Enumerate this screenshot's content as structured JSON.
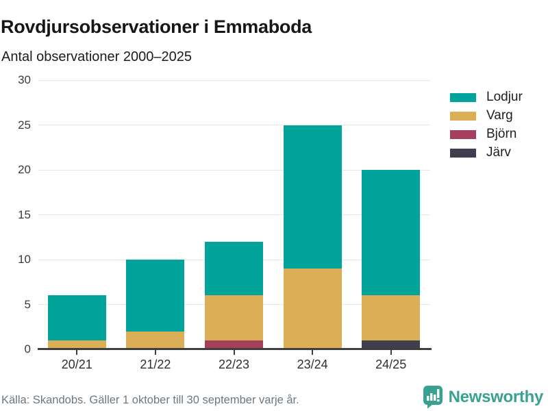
{
  "header": {
    "title": "Rovdjursobservationer i Emmaboda",
    "subtitle": "Antal observationer 2000–2025"
  },
  "chart_data": {
    "type": "bar",
    "stacked": true,
    "title": "Rovdjursobservationer i Emmaboda",
    "subtitle": "Antal observationer 2000–2025",
    "categories": [
      "20/21",
      "21/22",
      "22/23",
      "23/24",
      "24/25"
    ],
    "series": [
      {
        "name": "Lodjur",
        "color": "#00a49b",
        "values": [
          5,
          8,
          6,
          16,
          14
        ]
      },
      {
        "name": "Varg",
        "color": "#dcae55",
        "values": [
          1,
          2,
          5,
          9,
          5
        ]
      },
      {
        "name": "Björn",
        "color": "#a63f5e",
        "values": [
          0,
          0,
          1,
          0,
          0
        ]
      },
      {
        "name": "Järv",
        "color": "#413e4e",
        "values": [
          0,
          0,
          0,
          0,
          1
        ]
      }
    ],
    "totals": [
      6,
      10,
      12,
      25,
      20
    ],
    "xlabel": "",
    "ylabel": "",
    "ylim": [
      0,
      30
    ],
    "yticks": [
      0,
      5,
      10,
      15,
      20,
      25,
      30
    ],
    "grid": true,
    "legend_position": "right",
    "stack_order_bottom_up": [
      "Järv",
      "Björn",
      "Varg",
      "Lodjur"
    ]
  },
  "footer": {
    "source": "Källa: Skandobs. Gäller 1 oktober till 30 september varje år.",
    "brand": "Newsworthy"
  },
  "colors": {
    "lodjur": "#00a49b",
    "varg": "#dcae55",
    "bjorn": "#a63f5e",
    "jarv": "#413e4e",
    "axis": "#3f3e3e",
    "grid": "#e7e7e7",
    "text": "#1b1b1b",
    "muted_text": "#6d7780",
    "brand_teal": "#38a191"
  }
}
